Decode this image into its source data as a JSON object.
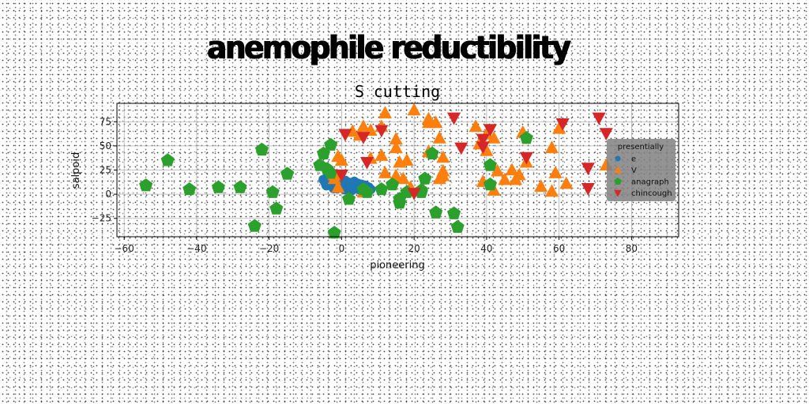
{
  "title": "anemophile reductibility",
  "chart_data": {
    "type": "scatter",
    "title": "S cutting",
    "xlabel": "pioneering",
    "ylabel": "salpoid",
    "xlim": [
      -62,
      93
    ],
    "ylim": [
      -44,
      94
    ],
    "xticks": [
      -60,
      -40,
      -20,
      0,
      20,
      40,
      60,
      80
    ],
    "yticks": [
      -25,
      0,
      25,
      50,
      75
    ],
    "grid": true,
    "legend": {
      "title": "presentially",
      "position": "right"
    },
    "series": [
      {
        "name": "e",
        "color": "#1f77b4",
        "marker": "circle",
        "points": [
          [
            -5,
            15
          ],
          [
            -4.5,
            12
          ],
          [
            -4,
            16
          ],
          [
            -3.5,
            10
          ],
          [
            -3,
            14
          ],
          [
            -2.5,
            8
          ],
          [
            -2,
            12
          ],
          [
            -1.5,
            15
          ],
          [
            -1,
            9
          ],
          [
            -0.5,
            13
          ],
          [
            0,
            7
          ],
          [
            0.5,
            11
          ],
          [
            1,
            14
          ],
          [
            1.5,
            9
          ],
          [
            2,
            12
          ],
          [
            2.5,
            6
          ],
          [
            3,
            10
          ],
          [
            3.5,
            13
          ],
          [
            4,
            8
          ],
          [
            4.5,
            11
          ],
          [
            5,
            6
          ],
          [
            5.5,
            10
          ],
          [
            6,
            7
          ],
          [
            6.5,
            9
          ],
          [
            7,
            5
          ],
          [
            -3.8,
            13
          ],
          [
            -2.8,
            11
          ],
          [
            -1.8,
            10
          ],
          [
            -0.8,
            12
          ],
          [
            0.2,
            10
          ],
          [
            1.2,
            8
          ],
          [
            2.2,
            9
          ],
          [
            3.2,
            8
          ],
          [
            4.2,
            7
          ],
          [
            5.2,
            8
          ],
          [
            6.2,
            6
          ],
          [
            7.5,
            7
          ],
          [
            8,
            5
          ],
          [
            -4.2,
            9
          ],
          [
            -1.2,
            6
          ],
          [
            0.8,
            5
          ],
          [
            2.8,
            4
          ],
          [
            4.8,
            5
          ],
          [
            -2.2,
            6
          ],
          [
            1.6,
            6
          ],
          [
            3.6,
            6
          ],
          [
            5.8,
            5
          ],
          [
            -0.2,
            8
          ]
        ]
      },
      {
        "name": "V",
        "color": "#ff7f0e",
        "marker": "triangle-up",
        "points": [
          [
            -2,
            20
          ],
          [
            -1,
            39
          ],
          [
            0,
            35
          ],
          [
            -2,
            16
          ],
          [
            -1,
            7
          ],
          [
            3,
            65
          ],
          [
            6,
            70
          ],
          [
            5,
            61
          ],
          [
            8,
            66
          ],
          [
            8,
            37
          ],
          [
            11,
            40
          ],
          [
            12,
            22
          ],
          [
            15,
            57
          ],
          [
            15,
            48
          ],
          [
            15,
            19
          ],
          [
            16,
            33
          ],
          [
            18,
            35
          ],
          [
            19,
            7
          ],
          [
            20,
            87
          ],
          [
            17,
            16
          ],
          [
            12,
            84
          ],
          [
            24,
            78
          ],
          [
            24,
            74
          ],
          [
            25,
            43
          ],
          [
            26,
            74
          ],
          [
            27,
            58
          ],
          [
            28,
            38
          ],
          [
            28,
            19
          ],
          [
            28,
            24
          ],
          [
            27,
            16
          ],
          [
            24,
            44
          ],
          [
            37,
            70
          ],
          [
            38,
            52
          ],
          [
            39,
            13
          ],
          [
            40,
            62
          ],
          [
            40,
            45
          ],
          [
            42,
            58
          ],
          [
            42,
            4
          ],
          [
            43,
            24
          ],
          [
            45,
            15
          ],
          [
            47,
            25
          ],
          [
            48,
            15
          ],
          [
            49,
            20
          ],
          [
            51,
            33
          ],
          [
            50,
            64
          ],
          [
            55,
            8
          ],
          [
            58,
            3
          ],
          [
            58,
            48
          ],
          [
            59,
            22
          ],
          [
            60,
            68
          ],
          [
            62,
            11
          ],
          [
            73,
            30
          ],
          [
            6,
            2
          ],
          [
            11,
            70
          ]
        ]
      },
      {
        "name": "anagraph",
        "color": "#2ca02c",
        "marker": "pentagon",
        "points": [
          [
            -54,
            9
          ],
          [
            -48,
            35
          ],
          [
            -42,
            5
          ],
          [
            -34,
            7
          ],
          [
            -28,
            7
          ],
          [
            -24,
            -33
          ],
          [
            -22,
            46
          ],
          [
            -19,
            2
          ],
          [
            -18,
            -15
          ],
          [
            -15,
            21
          ],
          [
            -5,
            42
          ],
          [
            -3,
            22
          ],
          [
            -3,
            51
          ],
          [
            -2,
            -40
          ],
          [
            2,
            -5
          ],
          [
            6,
            5
          ],
          [
            7,
            2
          ],
          [
            11,
            5
          ],
          [
            14,
            10
          ],
          [
            16,
            -9
          ],
          [
            16,
            -5
          ],
          [
            18,
            2
          ],
          [
            22,
            4
          ],
          [
            23,
            16
          ],
          [
            25,
            42
          ],
          [
            26,
            -19
          ],
          [
            31,
            -20
          ],
          [
            32,
            -34
          ],
          [
            41,
            30
          ],
          [
            41,
            10
          ],
          [
            51,
            58
          ],
          [
            -4,
            26
          ],
          [
            -6,
            30
          ],
          [
            22,
            2
          ]
        ]
      },
      {
        "name": "chincough",
        "color": "#d62728",
        "marker": "triangle-down",
        "points": [
          [
            1,
            62
          ],
          [
            6,
            59
          ],
          [
            7,
            33
          ],
          [
            11,
            66
          ],
          [
            20,
            1
          ],
          [
            31,
            79
          ],
          [
            33,
            48
          ],
          [
            39,
            57
          ],
          [
            39,
            49
          ],
          [
            41,
            67
          ],
          [
            51,
            38
          ],
          [
            61,
            73
          ],
          [
            68,
            6
          ],
          [
            68,
            27
          ],
          [
            71,
            79
          ],
          [
            73,
            63
          ],
          [
            0,
            20
          ]
        ]
      }
    ]
  }
}
